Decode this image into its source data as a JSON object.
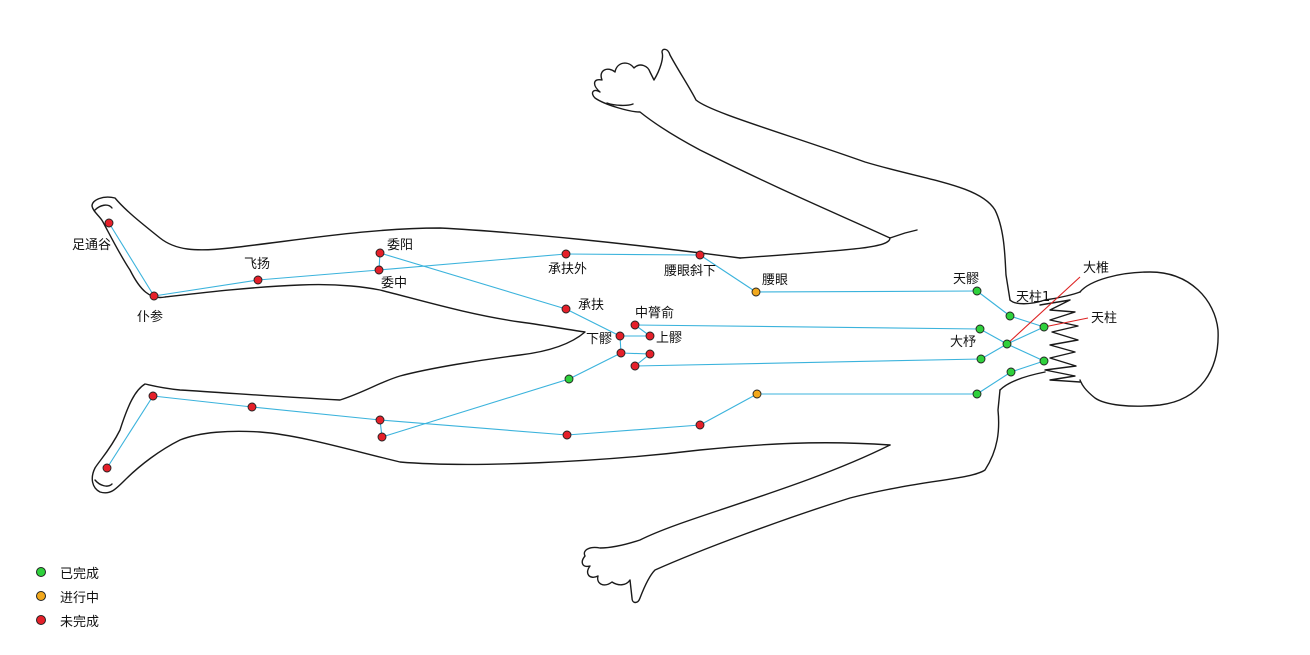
{
  "colors": {
    "done": "#2fd13c",
    "in_progress": "#f2a81c",
    "todo": "#e5202a",
    "path": "#3bb3dc",
    "leader": "#dd2222"
  },
  "legend": [
    {
      "label": "已完成",
      "status": "done"
    },
    {
      "label": "进行中",
      "status": "in_progress"
    },
    {
      "label": "未完成",
      "status": "todo"
    }
  ],
  "points": [
    {
      "id": "zutonggu",
      "label": "足通谷",
      "status": "todo"
    },
    {
      "id": "pucan",
      "label": "仆参",
      "status": "todo"
    },
    {
      "id": "feiyang",
      "label": "飞扬",
      "status": "todo"
    },
    {
      "id": "weiyang",
      "label": "委阳",
      "status": "todo"
    },
    {
      "id": "weizhong",
      "label": "委中",
      "status": "todo"
    },
    {
      "id": "chengfuwai",
      "label": "承扶外",
      "status": "todo"
    },
    {
      "id": "yaoyanxiexia",
      "label": "腰眼斜下",
      "status": "todo"
    },
    {
      "id": "yaoyan",
      "label": "腰眼",
      "status": "in_progress"
    },
    {
      "id": "tianliao",
      "label": "天髎",
      "status": "done"
    },
    {
      "id": "chengfu",
      "label": "承扶",
      "status": "todo"
    },
    {
      "id": "zhonglvshu",
      "label": "中膂俞",
      "status": "todo"
    },
    {
      "id": "xialiao",
      "label": "下髎",
      "status": "todo"
    },
    {
      "id": "shangliao",
      "label": "上髎",
      "status": "todo"
    },
    {
      "id": "tianzhu1",
      "label": "天柱1",
      "status": "done"
    },
    {
      "id": "dazhui",
      "label": "大椎",
      "status": "done"
    },
    {
      "id": "tianzhu",
      "label": "天柱",
      "status": "done"
    },
    {
      "id": "dazhu",
      "label": "大杼",
      "status": "done"
    },
    {
      "id": "r_foot_heel",
      "label": "",
      "status": "todo"
    },
    {
      "id": "r_foot_toe",
      "label": "",
      "status": "todo"
    },
    {
      "id": "r_calf",
      "label": "",
      "status": "todo"
    },
    {
      "id": "r_knee_a",
      "label": "",
      "status": "todo"
    },
    {
      "id": "r_knee_b",
      "label": "",
      "status": "todo"
    },
    {
      "id": "r_thigh_a",
      "label": "",
      "status": "todo"
    },
    {
      "id": "r_thigh_b",
      "label": "",
      "status": "todo"
    },
    {
      "id": "r_hip",
      "label": "",
      "status": "in_progress"
    },
    {
      "id": "sacral_a",
      "label": "",
      "status": "todo"
    },
    {
      "id": "sacral_b",
      "label": "",
      "status": "todo"
    },
    {
      "id": "sacral_c",
      "label": "",
      "status": "todo"
    },
    {
      "id": "r_back_a",
      "label": "",
      "status": "done"
    },
    {
      "id": "r_back_b",
      "label": "",
      "status": "done"
    },
    {
      "id": "r_back_c",
      "label": "",
      "status": "done"
    },
    {
      "id": "r_neck",
      "label": "",
      "status": "done"
    },
    {
      "id": "r_upper",
      "label": "",
      "status": "done"
    }
  ]
}
